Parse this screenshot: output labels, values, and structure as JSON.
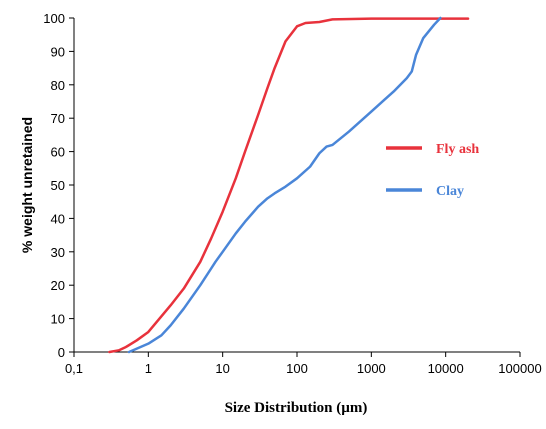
{
  "chart_data": {
    "type": "line",
    "xscale": "log",
    "xlabel": "Size Distribution (µm)",
    "ylabel": "% weight unretained",
    "xlim": [
      0.1,
      100000
    ],
    "ylim": [
      0,
      100
    ],
    "x_ticks": [
      0.1,
      1,
      10,
      100,
      1000,
      10000,
      100000
    ],
    "x_tick_labels": [
      "0,1",
      "1",
      "10",
      "100",
      "1000",
      "10000",
      "100000"
    ],
    "y_ticks": [
      0,
      10,
      20,
      30,
      40,
      50,
      60,
      70,
      80,
      90,
      100
    ],
    "y_tick_labels": [
      "0",
      "10",
      "20",
      "30",
      "40",
      "50",
      "60",
      "70",
      "80",
      "90",
      "100"
    ],
    "grid": false,
    "legend_position": "right",
    "series": [
      {
        "name": "Fly ash",
        "color": "#e8323c",
        "x": [
          0.3,
          0.4,
          0.5,
          0.7,
          1,
          2,
          3,
          5,
          7,
          10,
          15,
          20,
          30,
          40,
          50,
          70,
          100,
          130,
          200,
          300,
          1000,
          10000,
          20000
        ],
        "y": [
          0,
          0.5,
          1.5,
          3.5,
          6,
          14,
          19,
          27,
          34,
          42,
          52,
          60,
          71,
          79,
          85,
          93,
          97.5,
          98.5,
          98.8,
          99.6,
          99.8,
          99.8,
          99.8
        ]
      },
      {
        "name": "Clay",
        "color": "#4a86d8",
        "x": [
          0.55,
          0.7,
          1,
          1.5,
          2,
          3,
          5,
          7,
          8,
          10,
          15,
          20,
          30,
          40,
          50,
          70,
          100,
          150,
          200,
          250,
          300,
          500,
          1000,
          2000,
          3000,
          3500,
          4000,
          5000,
          7000,
          8500
        ],
        "y": [
          0,
          1,
          2.5,
          5,
          8,
          13,
          20,
          25,
          27,
          30,
          35.5,
          39,
          43.5,
          46,
          47.5,
          49.5,
          52,
          55.5,
          59.5,
          61.5,
          62,
          66,
          72,
          78,
          82,
          84,
          89,
          94,
          98,
          100
        ]
      }
    ]
  }
}
